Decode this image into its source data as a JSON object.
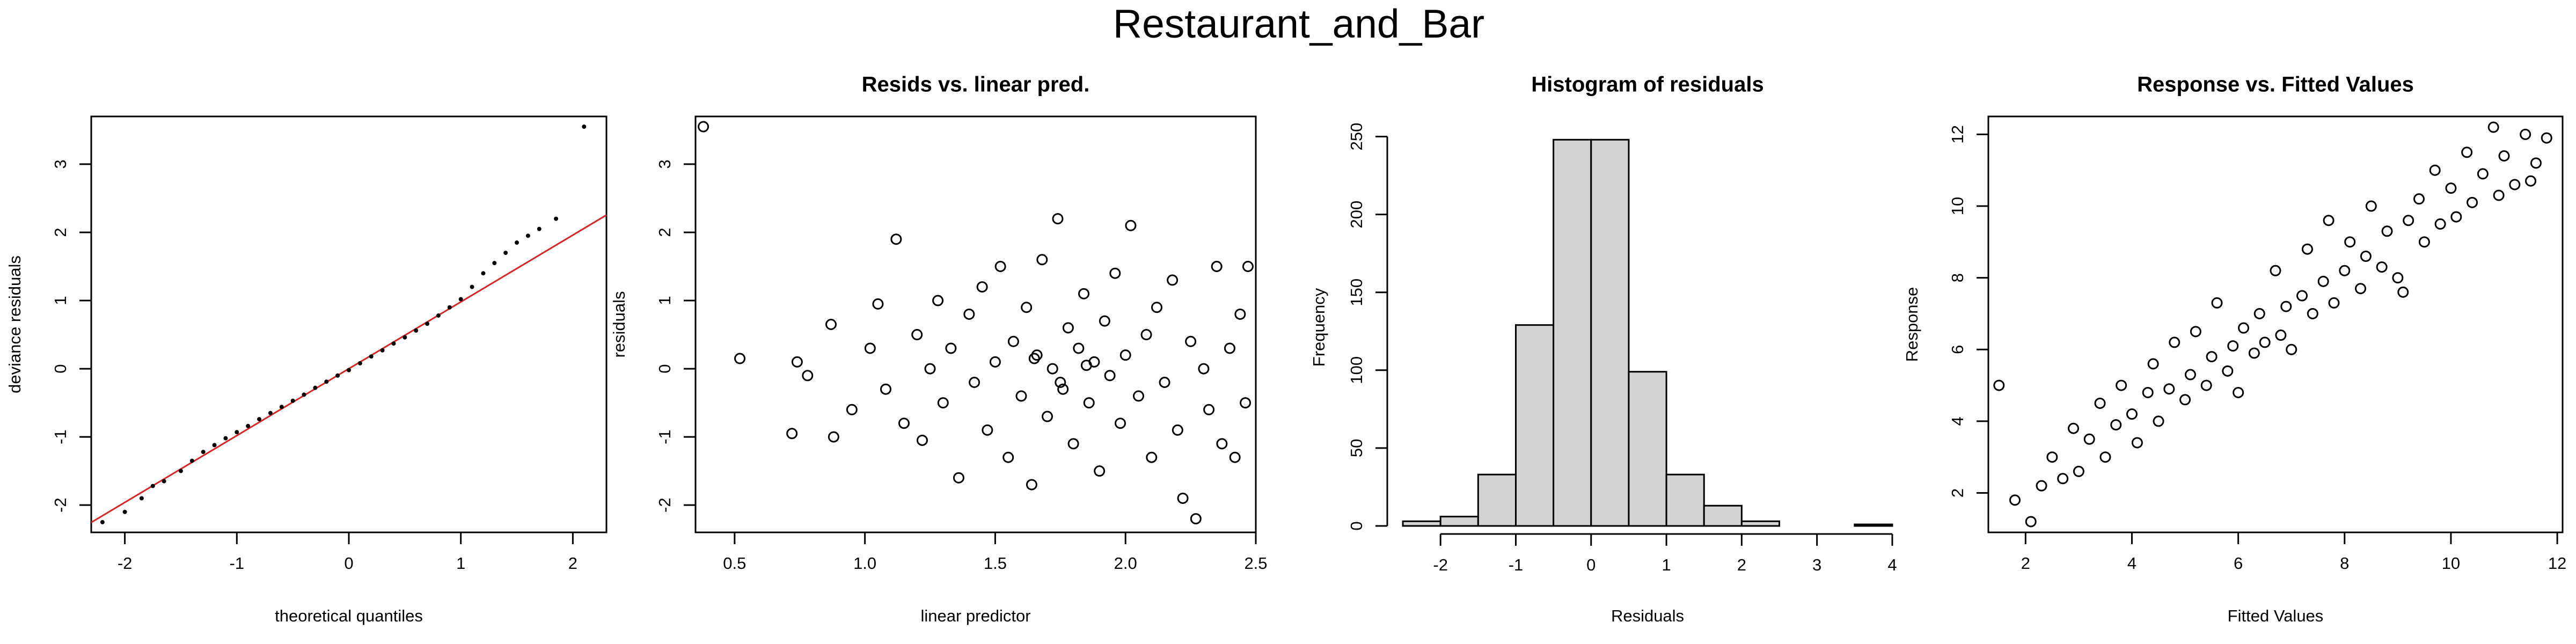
{
  "title": "Restaurant_and_Bar",
  "chart_data": [
    {
      "type": "scatter",
      "marker": "dot",
      "box": true,
      "color": "#000000",
      "xlabel": "theoretical quantiles",
      "ylabel": "deviance residuals",
      "xlim": [
        -2.3,
        2.3
      ],
      "ylim": [
        -2.4,
        3.7
      ],
      "xticks": [
        -2,
        -1,
        0,
        1,
        2
      ],
      "yticks": [
        -2,
        -1,
        0,
        1,
        2,
        3
      ],
      "qqline": {
        "color": "#d62728",
        "intercept": 0,
        "slope": 0.98
      },
      "x": [
        -2.2,
        -2.0,
        -1.85,
        -1.75,
        -1.65,
        -1.5,
        -1.4,
        -1.3,
        -1.2,
        -1.1,
        -1.0,
        -0.9,
        -0.8,
        -0.7,
        -0.6,
        -0.5,
        -0.4,
        -0.3,
        -0.2,
        -0.1,
        0,
        0.1,
        0.2,
        0.3,
        0.4,
        0.5,
        0.6,
        0.7,
        0.8,
        0.9,
        1.0,
        1.1,
        1.2,
        1.3,
        1.4,
        1.5,
        1.6,
        1.7,
        1.85,
        2.1
      ],
      "values": [
        -2.25,
        -2.1,
        -1.9,
        -1.72,
        -1.65,
        -1.5,
        -1.35,
        -1.22,
        -1.12,
        -1.02,
        -0.93,
        -0.84,
        -0.74,
        -0.65,
        -0.56,
        -0.47,
        -0.38,
        -0.28,
        -0.19,
        -0.1,
        -0.02,
        0.08,
        0.18,
        0.27,
        0.37,
        0.46,
        0.56,
        0.66,
        0.78,
        0.9,
        1.02,
        1.2,
        1.4,
        1.55,
        1.7,
        1.85,
        1.95,
        2.05,
        2.2,
        3.55
      ]
    },
    {
      "type": "scatter",
      "marker": "circle",
      "box": true,
      "color": "#000000",
      "title": "Resids vs. linear pred.",
      "xlabel": "linear predictor",
      "ylabel": "residuals",
      "xlim": [
        0.35,
        2.5
      ],
      "ylim": [
        -2.4,
        3.7
      ],
      "xticks": [
        0.5,
        {
          "value": 1,
          "label": "1.0"
        },
        1.5,
        {
          "value": 2,
          "label": "2.0"
        },
        2.5
      ],
      "yticks": [
        -2,
        -1,
        0,
        1,
        2,
        3
      ],
      "x": [
        0.38,
        0.52,
        0.72,
        0.74,
        0.78,
        0.87,
        0.88,
        0.95,
        1.02,
        1.05,
        1.08,
        1.12,
        1.15,
        1.2,
        1.22,
        1.25,
        1.28,
        1.3,
        1.33,
        1.36,
        1.4,
        1.42,
        1.45,
        1.47,
        1.5,
        1.52,
        1.55,
        1.57,
        1.6,
        1.62,
        1.64,
        1.66,
        1.68,
        1.7,
        1.72,
        1.74,
        1.76,
        1.78,
        1.8,
        1.82,
        1.84,
        1.86,
        1.88,
        1.9,
        1.92,
        1.94,
        1.96,
        1.98,
        2.0,
        2.02,
        2.05,
        2.08,
        2.1,
        2.12,
        2.15,
        2.18,
        2.2,
        2.22,
        2.25,
        2.27,
        2.3,
        2.32,
        2.35,
        2.37,
        2.4,
        2.42,
        2.44,
        2.46,
        2.47,
        1.75,
        1.85,
        1.65
      ],
      "values": [
        3.55,
        0.15,
        -0.95,
        0.1,
        -0.1,
        0.65,
        -1.0,
        -0.6,
        0.3,
        0.95,
        -0.3,
        1.9,
        -0.8,
        0.5,
        -1.05,
        0.0,
        1.0,
        -0.5,
        0.3,
        -1.6,
        0.8,
        -0.2,
        1.2,
        -0.9,
        0.1,
        1.5,
        -1.3,
        0.4,
        -0.4,
        0.9,
        -1.7,
        0.2,
        1.6,
        -0.7,
        0.0,
        2.2,
        -0.3,
        0.6,
        -1.1,
        0.3,
        1.1,
        -0.5,
        0.1,
        -1.5,
        0.7,
        -0.1,
        1.4,
        -0.8,
        0.2,
        2.1,
        -0.4,
        0.5,
        -1.3,
        0.9,
        -0.2,
        1.3,
        -0.9,
        -1.9,
        0.4,
        -2.2,
        0.0,
        -0.6,
        1.5,
        -1.1,
        0.3,
        -1.3,
        0.8,
        -0.5,
        1.5,
        -0.2,
        0.05,
        0.15
      ]
    },
    {
      "type": "histogram",
      "color": "#d3d3d3",
      "title": "Histogram of residuals",
      "xlabel": "Residuals",
      "ylabel": "Frequency",
      "xlim": [
        -2.6,
        4.1
      ],
      "ylim": [
        0,
        255
      ],
      "xticks": [
        -2,
        -1,
        0,
        1,
        2,
        3,
        4
      ],
      "yticks": [
        0,
        50,
        100,
        150,
        200,
        250
      ],
      "bins": [
        -2.5,
        -2,
        -1.5,
        -1,
        -0.5,
        0,
        0.5,
        1,
        1.5,
        2,
        2.5,
        3,
        3.5,
        4
      ],
      "values": [
        3,
        6,
        33,
        129,
        248,
        248,
        99,
        33,
        13,
        3,
        0,
        0,
        1
      ]
    },
    {
      "type": "scatter",
      "marker": "circle",
      "box": true,
      "color": "#000000",
      "title": "Response vs. Fitted Values",
      "xlabel": "Fitted Values",
      "ylabel": "Response",
      "xlim": [
        1.3,
        12.1
      ],
      "ylim": [
        0.9,
        12.5
      ],
      "xticks": [
        2,
        4,
        6,
        8,
        10,
        12
      ],
      "yticks": [
        2,
        4,
        6,
        8,
        10,
        12
      ],
      "x": [
        1.5,
        1.8,
        2.1,
        2.3,
        2.5,
        2.7,
        2.9,
        3.0,
        3.2,
        3.4,
        3.5,
        3.7,
        3.8,
        4.0,
        4.1,
        4.3,
        4.4,
        4.5,
        4.7,
        4.8,
        5.0,
        5.1,
        5.2,
        5.4,
        5.5,
        5.6,
        5.8,
        5.9,
        6.0,
        6.1,
        6.3,
        6.4,
        6.5,
        6.7,
        6.8,
        6.9,
        7.0,
        7.2,
        7.3,
        7.4,
        7.6,
        7.7,
        7.8,
        8.0,
        8.1,
        8.3,
        8.4,
        8.5,
        8.7,
        8.8,
        9.0,
        9.1,
        9.2,
        9.4,
        9.5,
        9.7,
        9.8,
        10.0,
        10.1,
        10.3,
        10.4,
        10.6,
        10.8,
        10.9,
        11.0,
        11.2,
        11.4,
        11.6,
        11.8,
        11.5
      ],
      "values": [
        5.0,
        1.8,
        1.2,
        2.2,
        3.0,
        2.4,
        3.8,
        2.6,
        3.5,
        4.5,
        3.0,
        3.9,
        5.0,
        4.2,
        3.4,
        4.8,
        5.6,
        4.0,
        4.9,
        6.2,
        4.6,
        5.3,
        6.5,
        5.0,
        5.8,
        7.3,
        5.4,
        6.1,
        4.8,
        6.6,
        5.9,
        7.0,
        6.2,
        8.2,
        6.4,
        7.2,
        6.0,
        7.5,
        8.8,
        7.0,
        7.9,
        9.6,
        7.3,
        8.2,
        9.0,
        7.7,
        8.6,
        10.0,
        8.3,
        9.3,
        8.0,
        7.6,
        9.6,
        10.2,
        9.0,
        11.0,
        9.5,
        10.5,
        9.7,
        11.5,
        10.1,
        10.9,
        12.2,
        10.3,
        11.4,
        10.6,
        12.0,
        11.2,
        11.9,
        10.7
      ]
    }
  ]
}
